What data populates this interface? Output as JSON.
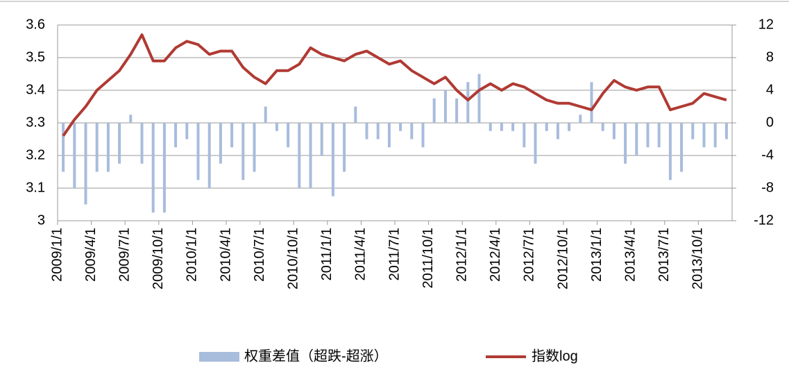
{
  "chart_data": {
    "type": "bar-line",
    "categories": [
      "2009/1/1",
      null,
      null,
      "2009/4/1",
      null,
      null,
      "2009/7/1",
      null,
      null,
      "2009/10/1",
      null,
      null,
      "2010/1/1",
      null,
      null,
      "2010/4/1",
      null,
      null,
      "2010/7/1",
      null,
      null,
      "2010/10/1",
      null,
      null,
      "2011/1/1",
      null,
      null,
      "2011/4/1",
      null,
      null,
      "2011/7/1",
      null,
      null,
      "2011/10/1",
      null,
      null,
      "2012/1/1",
      null,
      null,
      "2012/4/1",
      null,
      null,
      "2012/7/1",
      null,
      null,
      "2012/10/1",
      null,
      null,
      "2013/1/1",
      null,
      null,
      "2013/4/1",
      null,
      null,
      "2013/7/1",
      null,
      null,
      "2013/10/1",
      null,
      null
    ],
    "series": [
      {
        "name": "权重差值（超跌-超涨）",
        "color": "#a8bcdc",
        "axis": "y2",
        "values": [
          -6,
          -8,
          -10,
          -6,
          -6,
          -5,
          1,
          -5,
          -11,
          -11,
          -3,
          -2,
          -7,
          -8,
          -5,
          -3,
          -7,
          -6,
          2,
          -1,
          -3,
          -8,
          -8,
          -4,
          -9,
          -6,
          2,
          -2,
          -2,
          -3,
          -1,
          -2,
          -3,
          3,
          4,
          3,
          5,
          6,
          -1,
          -1,
          -1,
          -3,
          -5,
          -1,
          -2,
          -1,
          1,
          5,
          -1,
          -2,
          -5,
          -4,
          -3,
          -3,
          -7,
          -6,
          -2,
          -3,
          -3,
          -2
        ]
      },
      {
        "name": "指数log",
        "color": "#b03a33",
        "axis": "y",
        "values": [
          3.26,
          3.31,
          3.35,
          3.4,
          3.43,
          3.46,
          3.51,
          3.57,
          3.49,
          3.49,
          3.53,
          3.55,
          3.54,
          3.51,
          3.52,
          3.52,
          3.47,
          3.44,
          3.42,
          3.46,
          3.46,
          3.48,
          3.53,
          3.51,
          3.5,
          3.49,
          3.51,
          3.52,
          3.5,
          3.48,
          3.49,
          3.46,
          3.44,
          3.42,
          3.44,
          3.4,
          3.37,
          3.4,
          3.42,
          3.4,
          3.42,
          3.41,
          3.39,
          3.37,
          3.36,
          3.36,
          3.35,
          3.34,
          3.39,
          3.43,
          3.41,
          3.4,
          3.41,
          3.41,
          3.34,
          3.35,
          3.36,
          3.39,
          3.38,
          3.37
        ]
      }
    ],
    "ylim": [
      3,
      3.6
    ],
    "yticks": [
      3,
      3.1,
      3.2,
      3.3,
      3.4,
      3.5,
      3.6
    ],
    "y2lim": [
      -12,
      12
    ],
    "y2ticks": [
      -12,
      -8,
      -4,
      0,
      4,
      8,
      12
    ],
    "grid": true,
    "legend": "bottom"
  }
}
